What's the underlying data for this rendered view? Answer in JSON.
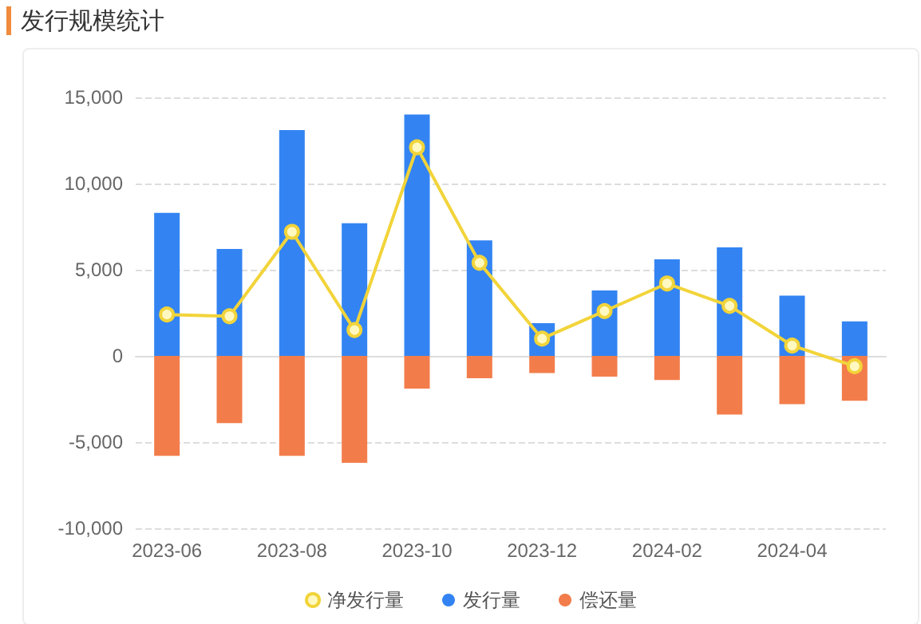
{
  "chart_data": {
    "type": "bar",
    "title": "发行规模统计",
    "categories": [
      "2023-06",
      null,
      "2023-08",
      null,
      "2023-10",
      null,
      "2023-12",
      null,
      "2024-02",
      null,
      "2024-04",
      null
    ],
    "series": [
      {
        "name": "净发行量",
        "type": "line",
        "color": "#f2d43a",
        "values": [
          2400,
          2300,
          7200,
          1500,
          12100,
          5400,
          1000,
          2600,
          4200,
          2900,
          600,
          -600
        ]
      },
      {
        "name": "发行量",
        "color": "#3384f2",
        "values": [
          8300,
          6200,
          13100,
          7700,
          14000,
          6700,
          1900,
          3800,
          5600,
          6300,
          3500,
          2000
        ]
      },
      {
        "name": "偿还量",
        "color": "#f27d4b",
        "values": [
          -5800,
          -3900,
          -5800,
          -6200,
          -1900,
          -1300,
          -1000,
          -1200,
          -1400,
          -3400,
          -2800,
          -2600
        ]
      }
    ],
    "stacked": true,
    "ylim": [
      -10000,
      15000
    ],
    "yticks": [
      {
        "value": -10000,
        "label": "-10,000"
      },
      {
        "value": -5000,
        "label": "-5,000"
      },
      0,
      {
        "value": 5000,
        "label": "5,000"
      },
      {
        "value": 10000,
        "label": "10,000"
      },
      {
        "value": 15000,
        "label": "15,000"
      }
    ],
    "grid": "y",
    "legend": "bottom",
    "marker": "circle",
    "line_style": "solid"
  }
}
